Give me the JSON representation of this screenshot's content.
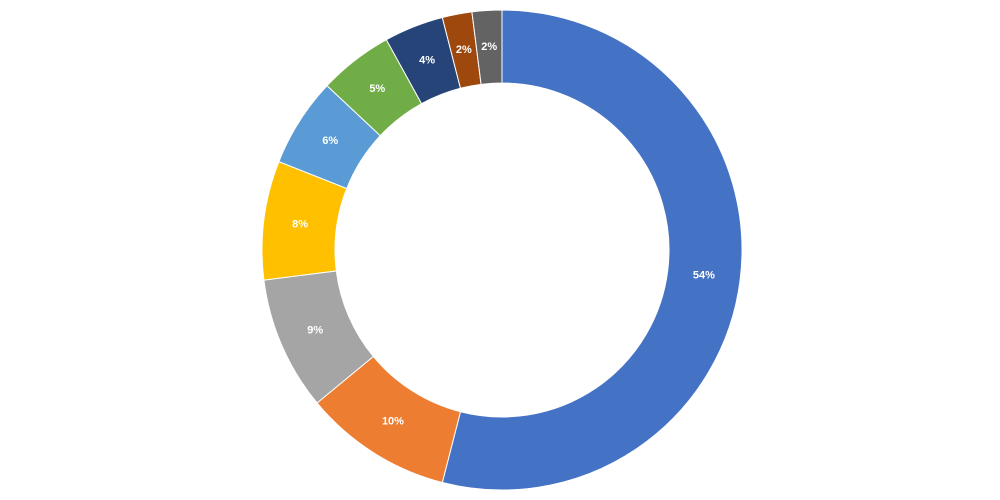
{
  "chart_data": {
    "type": "donut",
    "values": [
      54,
      10,
      9,
      8,
      6,
      5,
      4,
      2,
      2
    ],
    "value_labels": [
      "54%",
      "10%",
      "9%",
      "8%",
      "6%",
      "5%",
      "4%",
      "2%",
      "2%"
    ],
    "colors": [
      "#4472c4",
      "#ed7d31",
      "#a5a5a5",
      "#ffc000",
      "#5b9bd5",
      "#70ad47",
      "#264478",
      "#9e480e",
      "#636363"
    ]
  }
}
